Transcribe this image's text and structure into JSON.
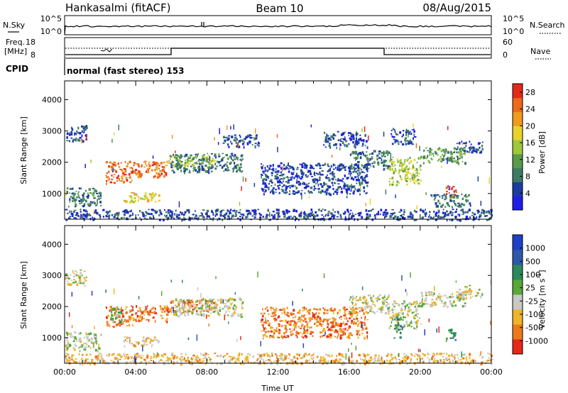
{
  "header": {
    "station": "Hankasalmi (fitACF)",
    "beam": "Beam 10",
    "date": "08/Aug/2015"
  },
  "nsky_panel": {
    "left_label": "N.Sky",
    "right_label": "N.Search",
    "left_top": "10^5",
    "left_bottom": "10^0",
    "right_top": "10^5",
    "right_bottom": "10^0"
  },
  "freq_panel": {
    "left_label_line1": "Freq.",
    "left_label_line2": "[MHz]",
    "left_top": "18",
    "left_bottom": "8",
    "right_top": "60",
    "right_bottom": "0",
    "right_label": "Nave"
  },
  "cpid_panel": {
    "label": "CPID",
    "text": "normal (fast stereo) 153"
  },
  "chart_data": [
    {
      "type": "heatmap",
      "title": "",
      "xlabel": "Time UT",
      "ylabel": "Slant Range [km]",
      "x_ticks": [
        "00:00",
        "04:00",
        "08:00",
        "12:00",
        "16:00",
        "20:00",
        "00:00"
      ],
      "y_ticks": [
        "1000",
        "2000",
        "3000",
        "4000"
      ],
      "xlim_hours": [
        0,
        24
      ],
      "ylim_km": [
        180,
        4600
      ],
      "colorbar": {
        "label": "Power [dB]",
        "ticks": [
          "4",
          "8",
          "12",
          "16",
          "20",
          "24",
          "28"
        ],
        "range": [
          0,
          30
        ],
        "colors": [
          "#1e1ee6",
          "#1c3ca0",
          "#3d7a66",
          "#5a9a4a",
          "#a0c83c",
          "#e8d22c",
          "#f09a1e",
          "#ec6a1a",
          "#e6281a"
        ]
      },
      "regions": [
        {
          "t0": 0.0,
          "t1": 2.0,
          "r0": 600,
          "r1": 1200,
          "v": 7
        },
        {
          "t0": 0.0,
          "t1": 1.2,
          "r0": 2700,
          "r1": 3200,
          "v": 6
        },
        {
          "t0": 0.0,
          "t1": 24.0,
          "r0": 180,
          "r1": 520,
          "v": 6
        },
        {
          "t0": 2.3,
          "t1": 3.8,
          "r0": 1350,
          "r1": 2050,
          "v": 26
        },
        {
          "t0": 3.8,
          "t1": 5.8,
          "r0": 1550,
          "r1": 2050,
          "v": 25
        },
        {
          "t0": 5.8,
          "t1": 8.5,
          "r0": 1850,
          "r1": 2250,
          "v": 15
        },
        {
          "t0": 3.3,
          "t1": 5.3,
          "r0": 750,
          "r1": 1050,
          "v": 17
        },
        {
          "t0": 6.0,
          "t1": 10.0,
          "r0": 1700,
          "r1": 2300,
          "v": 7
        },
        {
          "t0": 8.8,
          "t1": 11.0,
          "r0": 2500,
          "r1": 2900,
          "v": 6
        },
        {
          "t0": 11.0,
          "t1": 17.0,
          "r0": 1000,
          "r1": 2000,
          "v": 6
        },
        {
          "t0": 14.5,
          "t1": 17.0,
          "r0": 2500,
          "r1": 3000,
          "v": 6
        },
        {
          "t0": 16.0,
          "t1": 18.2,
          "r0": 1800,
          "r1": 2400,
          "v": 9
        },
        {
          "t0": 18.2,
          "t1": 20.0,
          "r0": 1300,
          "r1": 2200,
          "v": 16
        },
        {
          "t0": 20.0,
          "t1": 22.5,
          "r0": 2000,
          "r1": 2500,
          "v": 13
        },
        {
          "t0": 22.0,
          "t1": 23.5,
          "r0": 2300,
          "r1": 2700,
          "v": 6
        },
        {
          "t0": 18.3,
          "t1": 19.7,
          "r0": 2600,
          "r1": 3100,
          "v": 6
        },
        {
          "t0": 21.4,
          "t1": 22.0,
          "r0": 900,
          "r1": 1300,
          "v": 28
        },
        {
          "t0": 20.5,
          "t1": 22.8,
          "r0": 600,
          "r1": 1000,
          "v": 7
        }
      ]
    },
    {
      "type": "heatmap",
      "title": "",
      "xlabel": "Time UT",
      "ylabel": "Slant Range [km]",
      "x_ticks": [
        "00:00",
        "04:00",
        "08:00",
        "12:00",
        "16:00",
        "20:00",
        "00:00"
      ],
      "y_ticks": [
        "1000",
        "2000",
        "3000",
        "4000"
      ],
      "xlim_hours": [
        0,
        24
      ],
      "ylim_km": [
        180,
        4600
      ],
      "colorbar": {
        "label": "Velocity [m s^-1]",
        "ticks": [
          "1000",
          "500",
          "100",
          "25",
          "-25",
          "-100",
          "-500",
          "-1000"
        ],
        "colors": [
          "#2040c8",
          "#2e58a8",
          "#2a8a5a",
          "#5aa83a",
          "#c8c8c4",
          "#f0b428",
          "#ec7a1a",
          "#e6281a"
        ]
      },
      "regions": [
        {
          "t0": 0.0,
          "t1": 2.0,
          "r0": 600,
          "r1": 1200,
          "v": 4
        },
        {
          "t0": 0.0,
          "t1": 1.2,
          "r0": 2700,
          "r1": 3200,
          "v": 4
        },
        {
          "t0": 0.0,
          "t1": 24.0,
          "r0": 180,
          "r1": 520,
          "v": 5
        },
        {
          "t0": 2.3,
          "t1": 3.8,
          "r0": 1350,
          "r1": 2050,
          "v": 6
        },
        {
          "t0": 3.8,
          "t1": 5.8,
          "r0": 1550,
          "r1": 2050,
          "v": 6
        },
        {
          "t0": 5.8,
          "t1": 8.5,
          "r0": 1850,
          "r1": 2250,
          "v": 6
        },
        {
          "t0": 3.3,
          "t1": 5.3,
          "r0": 750,
          "r1": 1050,
          "v": 5
        },
        {
          "t0": 6.0,
          "t1": 10.0,
          "r0": 1700,
          "r1": 2300,
          "v": 4
        },
        {
          "t0": 11.0,
          "t1": 17.0,
          "r0": 1000,
          "r1": 2000,
          "v": 6
        },
        {
          "t0": 16.0,
          "t1": 18.2,
          "r0": 1800,
          "r1": 2400,
          "v": 4
        },
        {
          "t0": 18.2,
          "t1": 20.0,
          "r0": 1300,
          "r1": 2200,
          "v": 4
        },
        {
          "t0": 20.0,
          "t1": 22.5,
          "r0": 2000,
          "r1": 2500,
          "v": 4
        },
        {
          "t0": 22.0,
          "t1": 23.5,
          "r0": 2300,
          "r1": 2700,
          "v": 4
        },
        {
          "t0": 18.4,
          "t1": 18.9,
          "r0": 1000,
          "r1": 1700,
          "v": 2
        },
        {
          "t0": 21.4,
          "t1": 22.0,
          "r0": 900,
          "r1": 1300,
          "v": 2
        },
        {
          "t0": 2.5,
          "t1": 3.2,
          "r0": 1500,
          "r1": 2000,
          "v": 3
        }
      ]
    }
  ]
}
